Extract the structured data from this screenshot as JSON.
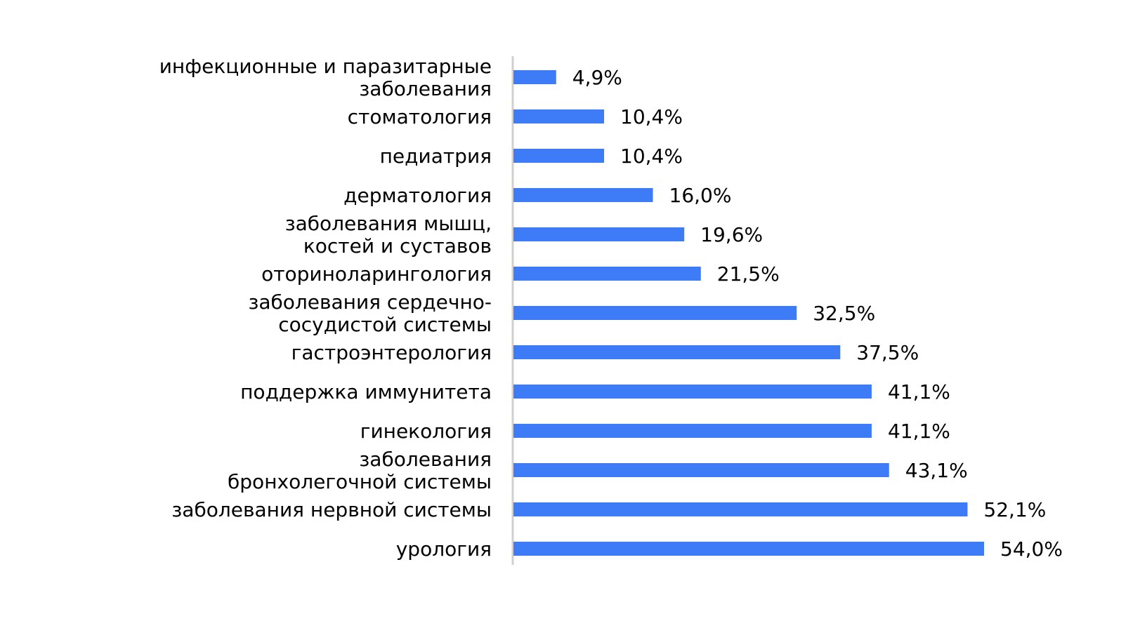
{
  "chart_data": {
    "type": "bar",
    "orientation": "horizontal",
    "title": "",
    "xlabel": "",
    "ylabel": "",
    "xlim": [
      0,
      54
    ],
    "grid": false,
    "legend": "none",
    "bar_color": "#3D7BF7",
    "axis_color": "#D0D0D0",
    "categories": [
      [
        "инфекционные и паразитарные",
        "заболевания"
      ],
      [
        "стоматология"
      ],
      [
        "педиатрия"
      ],
      [
        "дерматология"
      ],
      [
        "заболевания мышц,",
        "костей и суставов"
      ],
      [
        "оториноларингология"
      ],
      [
        "заболевания сердечно-",
        "сосудистой системы"
      ],
      [
        "гастроэнтерология"
      ],
      [
        "поддержка иммунитета"
      ],
      [
        "гинекология"
      ],
      [
        "заболевания",
        "бронхолегочной системы"
      ],
      [
        "заболевания нервной системы"
      ],
      [
        "урология"
      ]
    ],
    "values": [
      4.9,
      10.4,
      10.4,
      16.0,
      19.6,
      21.5,
      32.5,
      37.5,
      41.1,
      41.1,
      43.1,
      52.1,
      54.0
    ],
    "value_labels": [
      "4,9%",
      "10,4%",
      "10,4%",
      "16,0%",
      "19,6%",
      "21,5%",
      "32,5%",
      "37,5%",
      "41,1%",
      "41,1%",
      "43,1%",
      "52,1%",
      "54,0%"
    ]
  }
}
